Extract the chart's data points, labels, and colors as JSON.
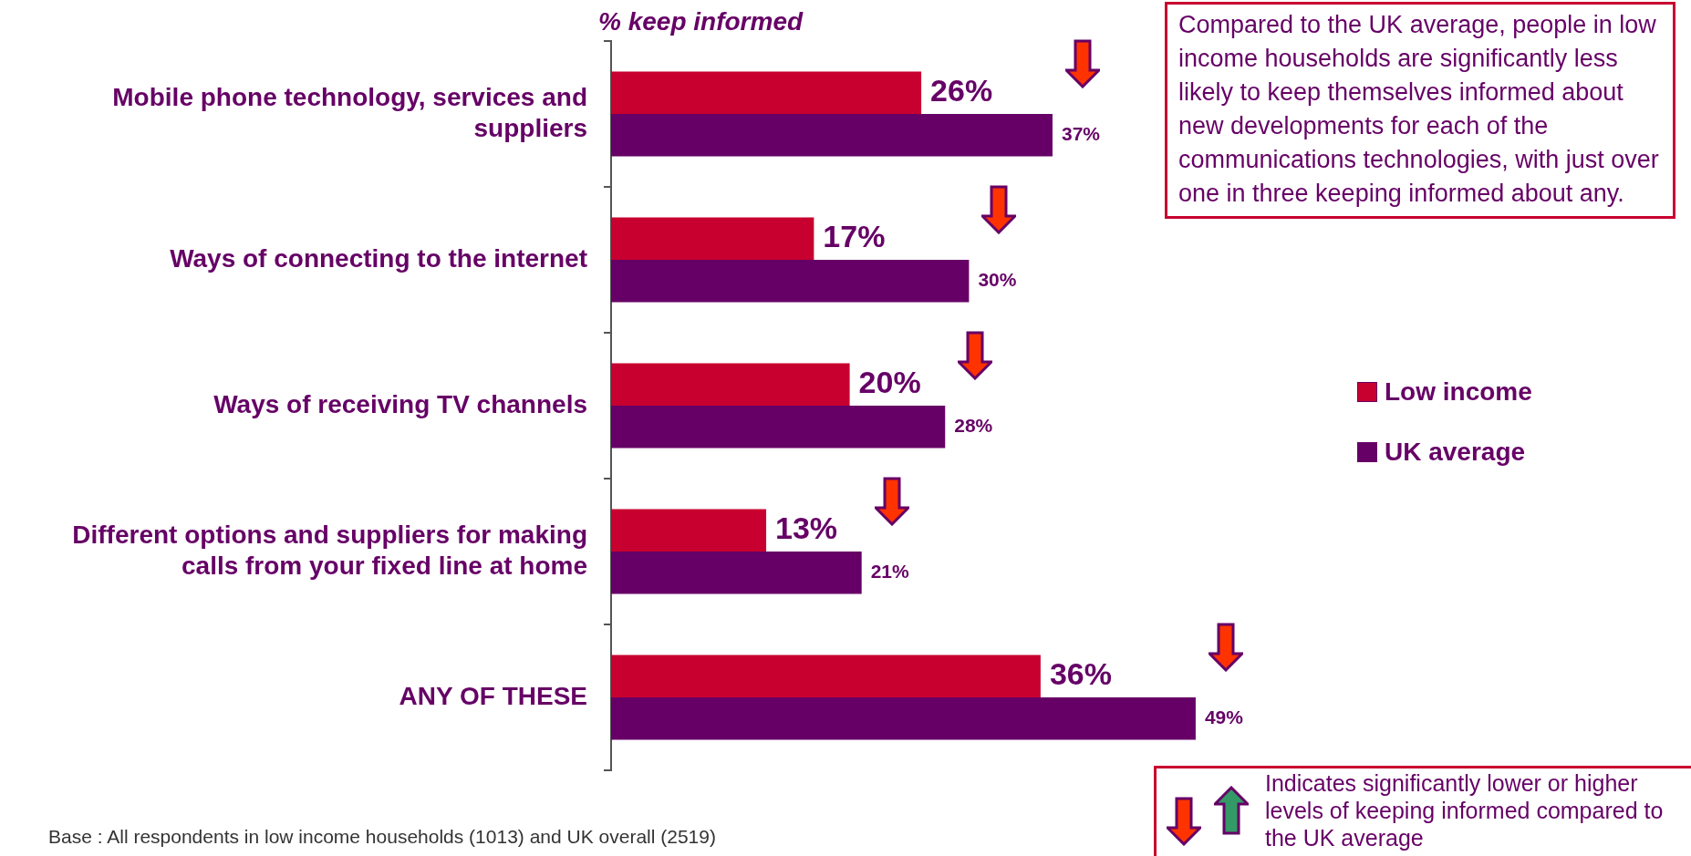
{
  "chart_data": {
    "type": "bar",
    "orientation": "horizontal",
    "title": "% keep informed",
    "categories": [
      "Mobile phone technology, services and suppliers",
      "Ways of connecting to the internet",
      "Ways of receiving TV channels",
      "Different options and suppliers for making calls from your fixed line at home",
      "ANY OF THESE"
    ],
    "series": [
      {
        "name": "Low income",
        "color": "#c8002f",
        "values": [
          26,
          17,
          20,
          13,
          36
        ],
        "value_labels": [
          "26%",
          "17%",
          "20%",
          "13%",
          "36%"
        ]
      },
      {
        "name": "UK average",
        "color": "#660066",
        "values": [
          37,
          30,
          28,
          21,
          49
        ],
        "value_labels": [
          "37%",
          "30%",
          "28%",
          "21%",
          "49%"
        ]
      }
    ],
    "tick_labels": "y",
    "legend": "right",
    "grid": false,
    "annotations": [
      "Compared to the UK average, people in low income households are significantly less likely to keep themselves informed about new developments for each of the communications technologies, with just over one in three keeping informed about any.",
      "Indicates significantly lower or higher levels of keeping informed compared to the UK average",
      "Base : All respondents in low income households (1013) and UK overall (2519)"
    ]
  }
}
